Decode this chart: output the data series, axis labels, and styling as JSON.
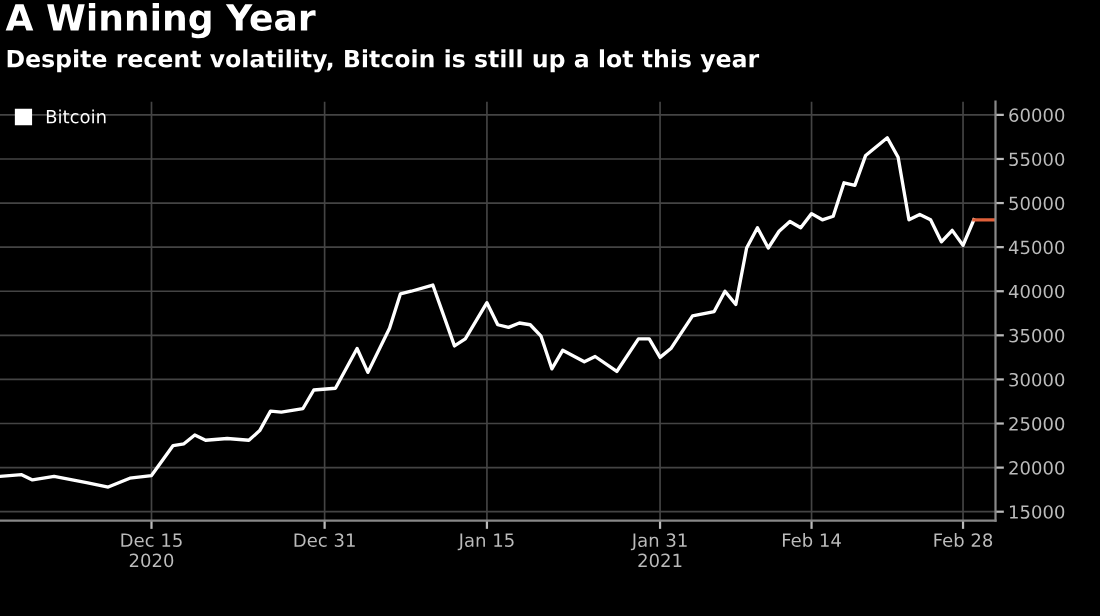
{
  "chart_data": {
    "type": "line",
    "title": "A Winning Year",
    "subtitle": "Despite recent volatility, Bitcoin is still up a lot this year",
    "series": [
      {
        "name": "Bitcoin",
        "color": "#ffffff",
        "x": [
          "2020-12-01",
          "2020-12-03",
          "2020-12-04",
          "2020-12-06",
          "2020-12-09",
          "2020-12-11",
          "2020-12-13",
          "2020-12-15",
          "2020-12-17",
          "2020-12-18",
          "2020-12-19",
          "2020-12-20",
          "2020-12-22",
          "2020-12-24",
          "2020-12-25",
          "2020-12-26",
          "2020-12-27",
          "2020-12-29",
          "2020-12-30",
          "2021-01-01",
          "2021-01-03",
          "2021-01-04",
          "2021-01-06",
          "2021-01-07",
          "2021-01-08",
          "2021-01-10",
          "2021-01-12",
          "2021-01-13",
          "2021-01-15",
          "2021-01-16",
          "2021-01-17",
          "2021-01-18",
          "2021-01-19",
          "2021-01-20",
          "2021-01-21",
          "2021-01-22",
          "2021-01-24",
          "2021-01-25",
          "2021-01-27",
          "2021-01-29",
          "2021-01-30",
          "2021-01-31",
          "2021-02-01",
          "2021-02-03",
          "2021-02-05",
          "2021-02-06",
          "2021-02-07",
          "2021-02-08",
          "2021-02-09",
          "2021-02-10",
          "2021-02-11",
          "2021-02-12",
          "2021-02-13",
          "2021-02-14",
          "2021-02-15",
          "2021-02-16",
          "2021-02-17",
          "2021-02-18",
          "2021-02-19",
          "2021-02-21",
          "2021-02-22",
          "2021-02-23",
          "2021-02-24",
          "2021-02-25",
          "2021-02-26",
          "2021-02-27",
          "2021-02-28",
          "2021-03-01"
        ],
        "values": [
          19000,
          19200,
          18600,
          19000,
          18300,
          17800,
          18800,
          19100,
          22500,
          22700,
          23700,
          23100,
          23300,
          23100,
          24200,
          26400,
          26300,
          26700,
          28800,
          29000,
          33500,
          30800,
          35800,
          39700,
          40000,
          40700,
          33800,
          34600,
          38700,
          36200,
          35900,
          36400,
          36200,
          34900,
          31200,
          33300,
          32000,
          32600,
          30900,
          34600,
          34600,
          32500,
          33500,
          37200,
          37700,
          40000,
          38500,
          44900,
          47200,
          44900,
          46800,
          47900,
          47200,
          48800,
          48100,
          48500,
          52300,
          52000,
          55400,
          57400,
          55200,
          48100,
          48700,
          48100,
          45600,
          46900,
          45200,
          48100
        ]
      },
      {
        "color": "#e0603a",
        "x": [
          "2021-03-01",
          "2021-03-03"
        ],
        "values": [
          48100,
          48100
        ]
      }
    ],
    "xlim": [
      "2020-12-01",
      "2021-03-03"
    ],
    "xticks": [
      {
        "value": "2020-12-15",
        "label": "Dec 15\n2020"
      },
      {
        "value": "2020-12-31",
        "label": "Dec 31"
      },
      {
        "value": "2021-01-15",
        "label": "Jan 15"
      },
      {
        "value": "2021-01-31",
        "label": "Jan 31\n2021"
      },
      {
        "value": "2021-02-14",
        "label": "Feb 14"
      },
      {
        "value": "2021-02-28",
        "label": "Feb 28"
      }
    ],
    "ylim": [
      14000,
      61500
    ],
    "yticks": [
      15000,
      20000,
      25000,
      30000,
      35000,
      40000,
      45000,
      50000,
      55000,
      60000
    ],
    "grid": true,
    "legend": "top left"
  }
}
